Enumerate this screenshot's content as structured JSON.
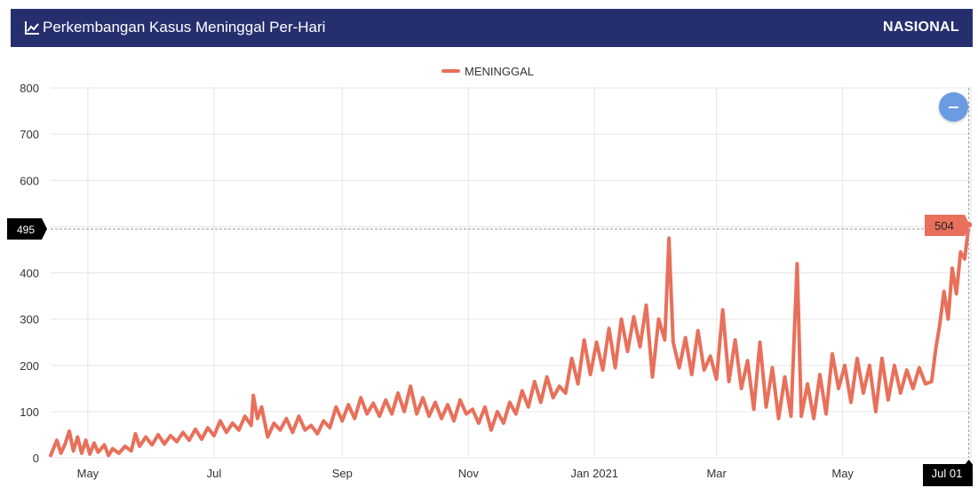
{
  "header": {
    "title": "Perkembangan Kasus Meninggal Per-Hari",
    "region": "NASIONAL",
    "icon": "line-chart-icon",
    "background": "#252f6e"
  },
  "legend": {
    "label": "MENINGGAL"
  },
  "cursor": {
    "y_value_label": "495",
    "x_label": "Jul 01",
    "point_value_label": "504"
  },
  "colors": {
    "series": "#e8705a",
    "grid": "#e6e6e6",
    "cursor_box": "#000000",
    "zoom_button": "#6b9be0"
  },
  "chart_data": {
    "type": "line",
    "title": "",
    "xlabel": "",
    "ylabel": "",
    "ylim": [
      0,
      800
    ],
    "yticks": [
      0,
      100,
      200,
      300,
      400,
      500,
      600,
      700,
      800
    ],
    "ytick_labels": [
      "0",
      "100",
      "200",
      "300",
      "400",
      "",
      "600",
      "700",
      "800"
    ],
    "x_date_range": [
      "2020-04-13",
      "2021-07-02"
    ],
    "xticks": [
      {
        "date": "2020-05-01",
        "label": "May"
      },
      {
        "date": "2020-07-01",
        "label": "Jul"
      },
      {
        "date": "2020-09-01",
        "label": "Sep"
      },
      {
        "date": "2020-11-01",
        "label": "Nov"
      },
      {
        "date": "2021-01-01",
        "label": "Jan 2021"
      },
      {
        "date": "2021-03-01",
        "label": "Mar"
      },
      {
        "date": "2021-05-01",
        "label": "May"
      }
    ],
    "legend_position": "top-center",
    "grid": true,
    "series": [
      {
        "name": "MENINGGAL",
        "points": [
          [
            "2020-04-13",
            5
          ],
          [
            "2020-04-16",
            38
          ],
          [
            "2020-04-18",
            10
          ],
          [
            "2020-04-20",
            30
          ],
          [
            "2020-04-22",
            58
          ],
          [
            "2020-04-24",
            15
          ],
          [
            "2020-04-26",
            45
          ],
          [
            "2020-04-28",
            10
          ],
          [
            "2020-04-30",
            38
          ],
          [
            "2020-05-02",
            8
          ],
          [
            "2020-05-04",
            32
          ],
          [
            "2020-05-06",
            12
          ],
          [
            "2020-05-09",
            28
          ],
          [
            "2020-05-11",
            5
          ],
          [
            "2020-05-13",
            20
          ],
          [
            "2020-05-16",
            10
          ],
          [
            "2020-05-19",
            25
          ],
          [
            "2020-05-22",
            15
          ],
          [
            "2020-05-24",
            52
          ],
          [
            "2020-05-26",
            25
          ],
          [
            "2020-05-29",
            45
          ],
          [
            "2020-06-01",
            28
          ],
          [
            "2020-06-04",
            50
          ],
          [
            "2020-06-07",
            30
          ],
          [
            "2020-06-10",
            48
          ],
          [
            "2020-06-13",
            35
          ],
          [
            "2020-06-16",
            55
          ],
          [
            "2020-06-19",
            38
          ],
          [
            "2020-06-22",
            62
          ],
          [
            "2020-06-25",
            40
          ],
          [
            "2020-06-28",
            65
          ],
          [
            "2020-07-01",
            48
          ],
          [
            "2020-07-04",
            80
          ],
          [
            "2020-07-07",
            55
          ],
          [
            "2020-07-10",
            75
          ],
          [
            "2020-07-13",
            60
          ],
          [
            "2020-07-16",
            90
          ],
          [
            "2020-07-19",
            70
          ],
          [
            "2020-07-20",
            135
          ],
          [
            "2020-07-22",
            85
          ],
          [
            "2020-07-24",
            110
          ],
          [
            "2020-07-27",
            45
          ],
          [
            "2020-07-30",
            75
          ],
          [
            "2020-08-02",
            60
          ],
          [
            "2020-08-05",
            85
          ],
          [
            "2020-08-08",
            55
          ],
          [
            "2020-08-11",
            90
          ],
          [
            "2020-08-14",
            60
          ],
          [
            "2020-08-17",
            70
          ],
          [
            "2020-08-20",
            52
          ],
          [
            "2020-08-23",
            80
          ],
          [
            "2020-08-26",
            65
          ],
          [
            "2020-08-29",
            110
          ],
          [
            "2020-09-01",
            80
          ],
          [
            "2020-09-04",
            115
          ],
          [
            "2020-09-07",
            85
          ],
          [
            "2020-09-10",
            130
          ],
          [
            "2020-09-13",
            95
          ],
          [
            "2020-09-16",
            118
          ],
          [
            "2020-09-19",
            90
          ],
          [
            "2020-09-22",
            125
          ],
          [
            "2020-09-25",
            95
          ],
          [
            "2020-09-28",
            140
          ],
          [
            "2020-10-01",
            100
          ],
          [
            "2020-10-04",
            155
          ],
          [
            "2020-10-07",
            95
          ],
          [
            "2020-10-10",
            130
          ],
          [
            "2020-10-13",
            90
          ],
          [
            "2020-10-16",
            120
          ],
          [
            "2020-10-19",
            85
          ],
          [
            "2020-10-22",
            115
          ],
          [
            "2020-10-25",
            80
          ],
          [
            "2020-10-28",
            125
          ],
          [
            "2020-10-31",
            95
          ],
          [
            "2020-11-03",
            105
          ],
          [
            "2020-11-06",
            75
          ],
          [
            "2020-11-09",
            110
          ],
          [
            "2020-11-12",
            60
          ],
          [
            "2020-11-15",
            100
          ],
          [
            "2020-11-18",
            75
          ],
          [
            "2020-11-21",
            120
          ],
          [
            "2020-11-24",
            95
          ],
          [
            "2020-11-27",
            145
          ],
          [
            "2020-11-30",
            110
          ],
          [
            "2020-12-03",
            165
          ],
          [
            "2020-12-06",
            120
          ],
          [
            "2020-12-09",
            175
          ],
          [
            "2020-12-12",
            130
          ],
          [
            "2020-12-15",
            155
          ],
          [
            "2020-12-18",
            140
          ],
          [
            "2020-12-21",
            215
          ],
          [
            "2020-12-24",
            160
          ],
          [
            "2020-12-27",
            255
          ],
          [
            "2020-12-30",
            180
          ],
          [
            "2021-01-02",
            250
          ],
          [
            "2021-01-05",
            190
          ],
          [
            "2021-01-08",
            280
          ],
          [
            "2021-01-11",
            195
          ],
          [
            "2021-01-14",
            300
          ],
          [
            "2021-01-17",
            230
          ],
          [
            "2021-01-20",
            305
          ],
          [
            "2021-01-23",
            240
          ],
          [
            "2021-01-26",
            330
          ],
          [
            "2021-01-29",
            175
          ],
          [
            "2021-02-01",
            300
          ],
          [
            "2021-02-04",
            255
          ],
          [
            "2021-02-06",
            475
          ],
          [
            "2021-02-08",
            250
          ],
          [
            "2021-02-11",
            195
          ],
          [
            "2021-02-14",
            260
          ],
          [
            "2021-02-17",
            180
          ],
          [
            "2021-02-20",
            275
          ],
          [
            "2021-02-23",
            190
          ],
          [
            "2021-02-26",
            220
          ],
          [
            "2021-03-01",
            170
          ],
          [
            "2021-03-04",
            320
          ],
          [
            "2021-03-07",
            165
          ],
          [
            "2021-03-10",
            255
          ],
          [
            "2021-03-13",
            150
          ],
          [
            "2021-03-16",
            210
          ],
          [
            "2021-03-19",
            105
          ],
          [
            "2021-03-22",
            250
          ],
          [
            "2021-03-25",
            110
          ],
          [
            "2021-03-28",
            195
          ],
          [
            "2021-03-31",
            85
          ],
          [
            "2021-04-03",
            175
          ],
          [
            "2021-04-06",
            90
          ],
          [
            "2021-04-09",
            420
          ],
          [
            "2021-04-11",
            90
          ],
          [
            "2021-04-14",
            160
          ],
          [
            "2021-04-17",
            85
          ],
          [
            "2021-04-20",
            180
          ],
          [
            "2021-04-23",
            95
          ],
          [
            "2021-04-26",
            225
          ],
          [
            "2021-04-29",
            150
          ],
          [
            "2021-05-02",
            200
          ],
          [
            "2021-05-05",
            120
          ],
          [
            "2021-05-08",
            215
          ],
          [
            "2021-05-11",
            140
          ],
          [
            "2021-05-14",
            200
          ],
          [
            "2021-05-17",
            100
          ],
          [
            "2021-05-20",
            215
          ],
          [
            "2021-05-23",
            125
          ],
          [
            "2021-05-26",
            200
          ],
          [
            "2021-05-29",
            140
          ],
          [
            "2021-06-01",
            190
          ],
          [
            "2021-06-04",
            150
          ],
          [
            "2021-06-07",
            195
          ],
          [
            "2021-06-10",
            160
          ],
          [
            "2021-06-13",
            165
          ],
          [
            "2021-06-15",
            235
          ],
          [
            "2021-06-17",
            290
          ],
          [
            "2021-06-19",
            360
          ],
          [
            "2021-06-21",
            300
          ],
          [
            "2021-06-23",
            410
          ],
          [
            "2021-06-25",
            355
          ],
          [
            "2021-06-27",
            445
          ],
          [
            "2021-06-29",
            430
          ],
          [
            "2021-07-01",
            504
          ]
        ]
      }
    ]
  }
}
